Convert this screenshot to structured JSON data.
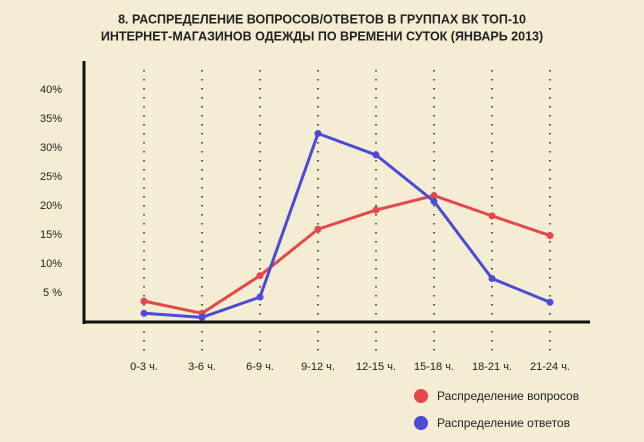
{
  "chart_data": {
    "type": "line",
    "title": [
      "8. РАСПРЕДЕЛЕНИЕ ВОПРОСОВ/ОТВЕТОВ В ГРУППАХ ВК ТОП-10",
      "ИНТЕРНЕТ-МАГАЗИНОВ ОДЕЖДЫ ПО ВРЕМЕНИ СУТОК (ЯНВАРЬ 2013)"
    ],
    "categories": [
      "0-3 ч.",
      "3-6 ч.",
      "6-9 ч.",
      "9-12 ч.",
      "12-15 ч.",
      "15-18 ч.",
      "18-21 ч.",
      "21-24 ч."
    ],
    "series": [
      {
        "name": "Распределение вопросов",
        "color": "#e5474b",
        "values": [
          3.6,
          1.5,
          8,
          16,
          19.3,
          21.8,
          18.3,
          14.9
        ]
      },
      {
        "name": "Распределение ответов",
        "color": "#4b4bd8",
        "values": [
          1.5,
          0.8,
          4.3,
          32.5,
          28.8,
          20.8,
          7.5,
          3.4
        ]
      }
    ],
    "ylim": [
      0,
      45
    ],
    "yticks": [
      {
        "value": 5,
        "label": "5  %"
      },
      {
        "value": 10,
        "label": "10%"
      },
      {
        "value": 15,
        "label": "15%"
      },
      {
        "value": 20,
        "label": "20%"
      },
      {
        "value": 25,
        "label": "25%"
      },
      {
        "value": 30,
        "label": "30%"
      },
      {
        "value": 35,
        "label": "35%"
      },
      {
        "value": 40,
        "label": "40%"
      }
    ]
  }
}
